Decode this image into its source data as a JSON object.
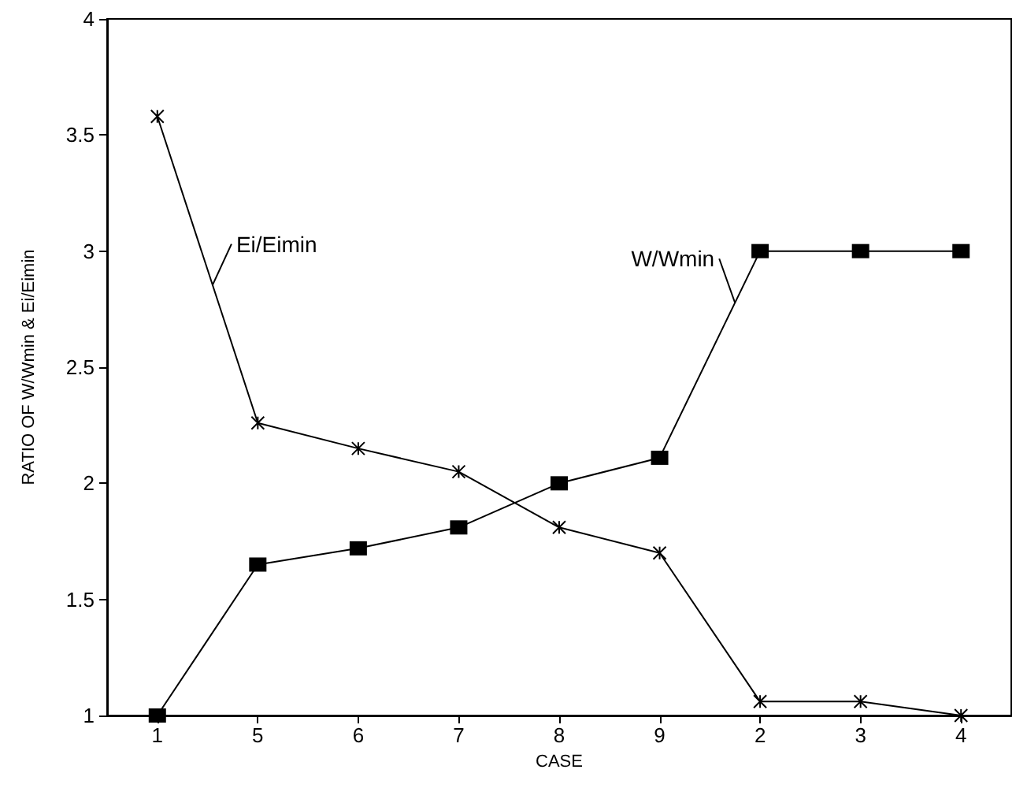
{
  "chart_data": {
    "type": "line",
    "xlabel": "CASE",
    "ylabel": "RATIO OF W/Wmin & Ei/Eimin",
    "categories": [
      "1",
      "5",
      "6",
      "7",
      "8",
      "9",
      "2",
      "3",
      "4"
    ],
    "series": [
      {
        "name": "Ei/Eimin",
        "color": "#000000",
        "marker": "cross",
        "values": [
          3.58,
          2.26,
          2.15,
          2.05,
          1.81,
          1.7,
          1.06,
          1.06,
          1.0
        ]
      },
      {
        "name": "W/Wmin",
        "color": "#000000",
        "marker": "square",
        "values": [
          1.0,
          1.65,
          1.72,
          1.81,
          2.0,
          2.11,
          3.0,
          3.0,
          3.0
        ]
      }
    ],
    "ylim": [
      1,
      4
    ],
    "yticks": [
      1,
      1.5,
      2,
      2.5,
      3,
      3.5,
      4
    ],
    "grid": false,
    "legend": false,
    "line_style": "solid"
  }
}
